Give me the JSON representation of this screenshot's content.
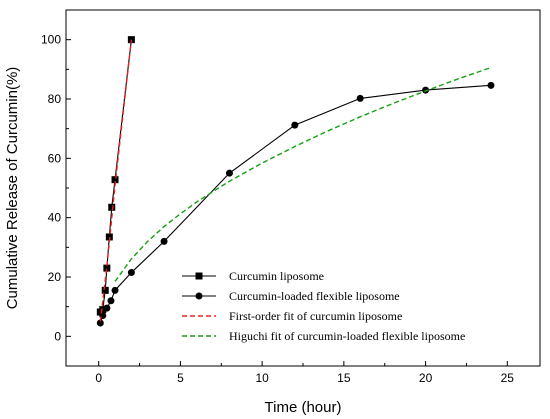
{
  "chart_data": {
    "type": "line",
    "xlabel": "Time (hour)",
    "ylabel": "Cumulative Release of Curcumin(%)",
    "xlim": [
      -2,
      27
    ],
    "ylim": [
      -10,
      110
    ],
    "xticks": [
      0,
      5,
      10,
      15,
      20,
      25
    ],
    "yticks": [
      0,
      20,
      40,
      60,
      80,
      100
    ],
    "grid": false,
    "legend_position": "bottom-right",
    "series": [
      {
        "name": "Curcumin liposome",
        "marker": "square",
        "line": "solid",
        "color": "#000000",
        "x": [
          0.1,
          0.25,
          0.4,
          0.5,
          0.65,
          0.8,
          1.0,
          2.0
        ],
        "y": [
          8.2,
          9.0,
          15.5,
          23.0,
          33.5,
          43.5,
          52.8,
          100.0
        ]
      },
      {
        "name": "Curcumin-loaded flexible liposome",
        "marker": "circle",
        "line": "solid",
        "color": "#000000",
        "x": [
          0.1,
          0.25,
          0.5,
          0.75,
          1.0,
          2.0,
          4.0,
          8.0,
          12.0,
          16.0,
          20.0,
          24.0
        ],
        "y": [
          4.5,
          7.0,
          9.5,
          12.0,
          15.5,
          21.5,
          32.0,
          55.0,
          71.2,
          80.2,
          83.0,
          84.6
        ]
      },
      {
        "name": "First-order fit of curcumin liposome",
        "marker": "none",
        "line": "dashed",
        "color": "#e8211d",
        "x": [
          0.1,
          0.5,
          1.0,
          1.5,
          2.0
        ],
        "y": [
          5.0,
          23.5,
          51.0,
          75.5,
          100.0
        ]
      },
      {
        "name": "Higuchi fit of curcumin-loaded flexible liposome",
        "marker": "none",
        "line": "dashed",
        "color": "#12a012",
        "x": [
          1,
          2,
          3,
          4,
          5,
          6,
          8,
          10,
          12,
          14,
          16,
          18,
          20,
          22,
          24
        ],
        "y": [
          18.5,
          26.1,
          32.0,
          37.0,
          41.3,
          45.3,
          52.3,
          58.4,
          64.0,
          69.2,
          74.0,
          78.5,
          82.7,
          86.8,
          90.6
        ]
      }
    ]
  }
}
